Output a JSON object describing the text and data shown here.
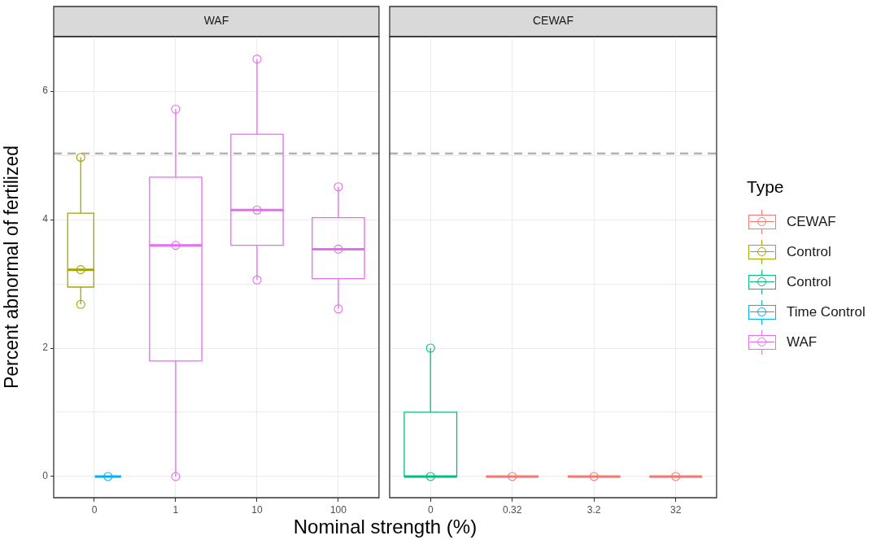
{
  "chart_data": [
    {
      "type": "box",
      "title": "WAF",
      "xlabel": "Nominal strength (%)",
      "ylabel": "Percent abnormal of fertilized",
      "legend_title": "Type",
      "categories": [
        "0",
        "1",
        "10",
        "100"
      ],
      "ylim": [
        -0.33,
        6.85
      ],
      "yticks": [
        0,
        {
          "value": 1,
          "label": null
        },
        2,
        {
          "value": 3,
          "label": null
        },
        4,
        {
          "value": 5,
          "label": null
        },
        6
      ],
      "grid": true,
      "legend": "right",
      "marker": "circle",
      "ref_lines": [
        {
          "axis": "y",
          "value": 5.03,
          "color": "#b3b3b3",
          "line_style": "dashed"
        }
      ],
      "series": [
        {
          "name": "Control",
          "color": "#a3a500",
          "boxes": [
            {
              "low": 2.68,
              "q1": 2.95,
              "median": 3.22,
              "q3": 4.1,
              "high": 4.97
            },
            null,
            null,
            null
          ]
        },
        {
          "name": "Time Control",
          "color": "#00b0f6",
          "boxes": [
            {
              "low": 0,
              "q1": 0,
              "median": 0,
              "q3": 0,
              "high": 0
            },
            null,
            null,
            null
          ]
        },
        {
          "name": "WAF",
          "color": "#e76bf3",
          "boxes": [
            null,
            {
              "low": 0,
              "q1": 1.8,
              "median": 3.6,
              "q3": 4.66,
              "high": 5.72
            },
            {
              "low": 3.06,
              "q1": 3.6,
              "median": 4.15,
              "q3": 5.33,
              "high": 6.5
            },
            {
              "low": 2.61,
              "q1": 3.08,
              "median": 3.54,
              "q3": 4.03,
              "high": 4.51
            }
          ]
        },
        {
          "type": "scatter",
          "color": "#a3a500",
          "x": [
            "0",
            "0",
            "0"
          ],
          "values": [
            4.97,
            3.22,
            2.68
          ]
        },
        {
          "type": "scatter",
          "color": "#00b0f6",
          "x": [
            "0"
          ],
          "values": [
            0
          ]
        },
        {
          "type": "scatter",
          "color": "#e76bf3",
          "x": [
            "1",
            "1",
            "1",
            "10",
            "10",
            "10",
            "100",
            "100",
            "100"
          ],
          "values": [
            5.72,
            3.6,
            0,
            6.5,
            4.15,
            3.06,
            4.51,
            3.54,
            2.61
          ]
        }
      ]
    },
    {
      "type": "box",
      "title": "CEWAF",
      "categories": [
        "0",
        "0.32",
        "3.2",
        "32"
      ],
      "ylim": [
        -0.33,
        6.85
      ],
      "yticks": [
        0,
        {
          "value": 1,
          "label": null
        },
        2,
        {
          "value": 3,
          "label": null
        },
        4,
        {
          "value": 5,
          "label": null
        },
        6
      ],
      "tick_labels": "x",
      "grid": true,
      "legend": "right",
      "marker": "circle",
      "ref_lines": [
        {
          "axis": "y",
          "value": 5.03,
          "color": "#b3b3b3",
          "line_style": "dashed"
        }
      ],
      "series": [
        {
          "name": "CEWAF",
          "color": "#f8766d",
          "boxes": [
            null,
            {
              "low": 0,
              "q1": 0,
              "median": 0,
              "q3": 0,
              "high": 0
            },
            {
              "low": 0,
              "q1": 0,
              "median": 0,
              "q3": 0,
              "high": 0
            },
            {
              "low": 0,
              "q1": 0,
              "median": 0,
              "q3": 0,
              "high": 0
            }
          ]
        },
        {
          "name": "Control",
          "color": "#00bf7d",
          "boxes": [
            {
              "low": 0,
              "q1": 0,
              "median": 0,
              "q3": 1,
              "high": 2
            },
            null,
            null,
            null
          ]
        },
        {
          "type": "scatter",
          "color": "#00bf7d",
          "x": [
            "0",
            "0"
          ],
          "values": [
            2,
            0
          ]
        },
        {
          "type": "scatter",
          "color": "#f8766d",
          "x": [
            "0.32",
            "3.2",
            "32"
          ],
          "values": [
            0,
            0,
            0
          ]
        }
      ]
    }
  ]
}
